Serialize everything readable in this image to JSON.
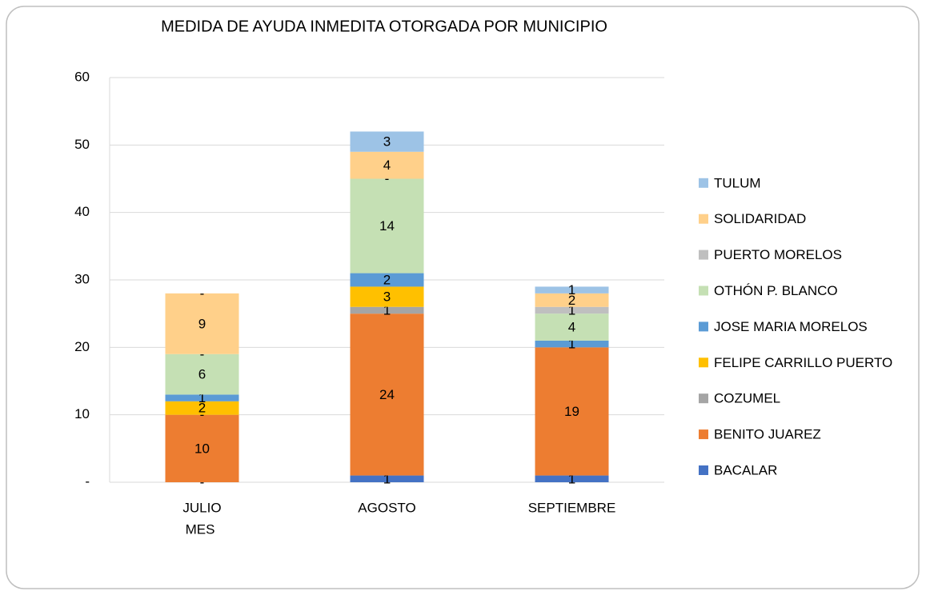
{
  "chart_data": {
    "type": "stacked_bar",
    "title": "MEDIDA DE AYUDA INMEDITA OTORGADA POR MUNICIPIO",
    "x_label": "MES",
    "categories": [
      "JULIO",
      "AGOSTO",
      "SEPTIEMBRE"
    ],
    "ylim": [
      0,
      60
    ],
    "yticks": [
      {
        "value": 0,
        "label": "-"
      },
      10,
      20,
      30,
      40,
      50,
      60
    ],
    "grid": true,
    "legend": "right",
    "series": [
      {
        "name": "BACALAR",
        "color": "#4472c4",
        "values": [
          0,
          1,
          1
        ],
        "value_labels": [
          "-",
          "1",
          "1"
        ]
      },
      {
        "name": "BENITO JUAREZ",
        "color": "#ed7d31",
        "values": [
          10,
          24,
          19
        ],
        "value_labels": [
          "10",
          "24",
          "19"
        ]
      },
      {
        "name": "COZUMEL",
        "color": "#a5a5a5",
        "values": [
          0,
          1,
          0
        ],
        "value_labels": [
          "-",
          "1",
          null
        ]
      },
      {
        "name": "FELIPE CARRILLO PUERTO",
        "color": "#ffc000",
        "values": [
          2,
          3,
          0
        ],
        "value_labels": [
          "2",
          "3",
          null
        ]
      },
      {
        "name": "JOSE MARIA MORELOS",
        "color": "#5b9bd5",
        "values": [
          1,
          2,
          1
        ],
        "value_labels": [
          "1",
          "2",
          "1"
        ]
      },
      {
        "name": "OTHÓN P. BLANCO",
        "color": "#c5e0b4",
        "values": [
          6,
          14,
          4
        ],
        "value_labels": [
          "6",
          "14",
          "4"
        ]
      },
      {
        "name": "PUERTO MORELOS",
        "color": "#bfbfbf",
        "values": [
          0,
          0,
          1
        ],
        "value_labels": [
          "-",
          "-",
          "1"
        ]
      },
      {
        "name": "SOLIDARIDAD",
        "color": "#ffd08a",
        "values": [
          9,
          4,
          2
        ],
        "value_labels": [
          "9",
          "4",
          "2"
        ]
      },
      {
        "name": "TULUM",
        "color": "#9dc3e6",
        "values": [
          0,
          3,
          1
        ],
        "value_labels": [
          "-",
          "3",
          "1"
        ]
      }
    ]
  }
}
